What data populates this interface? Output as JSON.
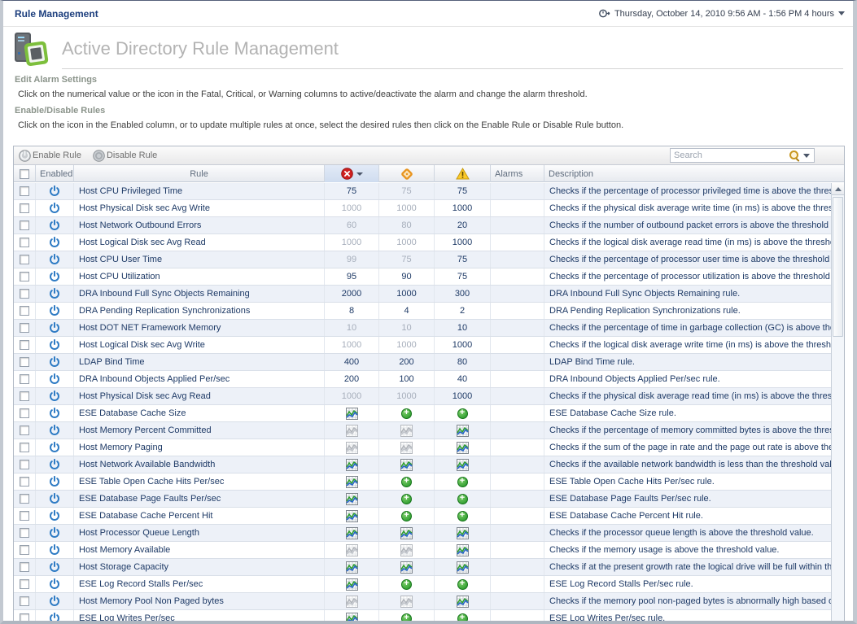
{
  "topbar": {
    "title": "Rule Management",
    "time_range": "Thursday, October 14, 2010 9:56 AM - 1:56 PM 4 hours"
  },
  "header": {
    "title": "Active Directory Rule Management"
  },
  "instructions": {
    "section1_title": "Edit Alarm Settings",
    "section1_text": "Click on the numerical value or the icon in the Fatal, Critical, or Warning columns to active/deactivate the alarm and change the alarm threshold.",
    "section2_title": "Enable/Disable Rules",
    "section2_text": "Click on the icon in the Enabled column, or to update multiple rules at once, select the desired rules then click on the Enable Rule or Disable Rule button."
  },
  "toolbar": {
    "enable_label": "Enable Rule",
    "disable_label": "Disable Rule",
    "search_placeholder": "Search"
  },
  "colors": {
    "enabled_blue": "#2e7bc4",
    "fatal_red": "#cf2020",
    "critical_orange": "#e8941e",
    "warning_yellow": "#fbc928",
    "plus_green": "#1d9123",
    "chart_green": "#2f9e2f",
    "chart_blue": "#2766c8"
  },
  "table": {
    "columns": {
      "enabled": "Enabled",
      "rule": "Rule",
      "alarms": "Alarms",
      "description": "Description"
    },
    "column_icons": {
      "fatal": "fatal-circle-x-icon",
      "critical": "critical-diamond-icon",
      "warning": "warning-triangle-icon"
    },
    "rows": [
      {
        "rule": "Host CPU Privileged Time",
        "fatal": {
          "type": "value",
          "value": "75",
          "active": true
        },
        "critical": {
          "type": "value",
          "value": "75",
          "active": false
        },
        "warning": {
          "type": "value",
          "value": "75",
          "active": true
        },
        "alarms": "",
        "description": "Checks if the percentage of processor privileged time is above the thresh"
      },
      {
        "rule": "Host Physical Disk sec Avg Write",
        "fatal": {
          "type": "value",
          "value": "1000",
          "active": false
        },
        "critical": {
          "type": "value",
          "value": "1000",
          "active": false
        },
        "warning": {
          "type": "value",
          "value": "1000",
          "active": true
        },
        "alarms": "",
        "description": "Checks if the physical disk average write time (in ms) is above the thresho"
      },
      {
        "rule": "Host Network Outbound Errors",
        "fatal": {
          "type": "value",
          "value": "60",
          "active": false
        },
        "critical": {
          "type": "value",
          "value": "80",
          "active": false
        },
        "warning": {
          "type": "value",
          "value": "20",
          "active": true
        },
        "alarms": "",
        "description": "Checks if the number of outbound packet errors is above the threshold va"
      },
      {
        "rule": "Host Logical Disk sec Avg Read",
        "fatal": {
          "type": "value",
          "value": "1000",
          "active": false
        },
        "critical": {
          "type": "value",
          "value": "1000",
          "active": false
        },
        "warning": {
          "type": "value",
          "value": "1000",
          "active": true
        },
        "alarms": "",
        "description": "Checks if the logical disk average read time (in ms) is above the threshold"
      },
      {
        "rule": "Host CPU User Time",
        "fatal": {
          "type": "value",
          "value": "99",
          "active": false
        },
        "critical": {
          "type": "value",
          "value": "75",
          "active": false
        },
        "warning": {
          "type": "value",
          "value": "75",
          "active": true
        },
        "alarms": "",
        "description": "Checks if the percentage of processor user time is above the threshold va"
      },
      {
        "rule": "Host CPU Utilization",
        "fatal": {
          "type": "value",
          "value": "95",
          "active": true
        },
        "critical": {
          "type": "value",
          "value": "90",
          "active": true
        },
        "warning": {
          "type": "value",
          "value": "75",
          "active": true
        },
        "alarms": "",
        "description": "Checks if the percentage of processor utilization is above the threshold v"
      },
      {
        "rule": "DRA Inbound Full Sync Objects Remaining",
        "fatal": {
          "type": "value",
          "value": "2000",
          "active": true
        },
        "critical": {
          "type": "value",
          "value": "1000",
          "active": true
        },
        "warning": {
          "type": "value",
          "value": "300",
          "active": true
        },
        "alarms": "",
        "description": "DRA Inbound Full Sync Objects Remaining rule."
      },
      {
        "rule": "DRA Pending Replication Synchronizations",
        "fatal": {
          "type": "value",
          "value": "8",
          "active": true
        },
        "critical": {
          "type": "value",
          "value": "4",
          "active": true
        },
        "warning": {
          "type": "value",
          "value": "2",
          "active": true
        },
        "alarms": "",
        "description": "DRA Pending Replication Synchronizations rule."
      },
      {
        "rule": "Host DOT NET Framework Memory",
        "fatal": {
          "type": "value",
          "value": "10",
          "active": false
        },
        "critical": {
          "type": "value",
          "value": "10",
          "active": false
        },
        "warning": {
          "type": "value",
          "value": "10",
          "active": true
        },
        "alarms": "",
        "description": "Checks if the percentage of time in garbage collection (GC) is above the t"
      },
      {
        "rule": "Host Logical Disk sec Avg Write",
        "fatal": {
          "type": "value",
          "value": "1000",
          "active": false
        },
        "critical": {
          "type": "value",
          "value": "1000",
          "active": false
        },
        "warning": {
          "type": "value",
          "value": "1000",
          "active": true
        },
        "alarms": "",
        "description": "Checks if the logical disk average write time (in ms) is above the threshol"
      },
      {
        "rule": "LDAP Bind Time",
        "fatal": {
          "type": "value",
          "value": "400",
          "active": true
        },
        "critical": {
          "type": "value",
          "value": "200",
          "active": true
        },
        "warning": {
          "type": "value",
          "value": "80",
          "active": true
        },
        "alarms": "",
        "description": "LDAP Bind Time rule."
      },
      {
        "rule": "DRA Inbound Objects Applied Per/sec",
        "fatal": {
          "type": "value",
          "value": "200",
          "active": true
        },
        "critical": {
          "type": "value",
          "value": "100",
          "active": true
        },
        "warning": {
          "type": "value",
          "value": "40",
          "active": true
        },
        "alarms": "",
        "description": "DRA Inbound Objects Applied Per/sec rule."
      },
      {
        "rule": "Host Physical Disk sec Avg Read",
        "fatal": {
          "type": "value",
          "value": "1000",
          "active": false
        },
        "critical": {
          "type": "value",
          "value": "1000",
          "active": false
        },
        "warning": {
          "type": "value",
          "value": "1000",
          "active": true
        },
        "alarms": "",
        "description": "Checks if the physical disk average read time (in ms) is above the thresho"
      },
      {
        "rule": "ESE Database Cache Size",
        "fatal": {
          "type": "chart",
          "active": true
        },
        "critical": {
          "type": "add",
          "active": true
        },
        "warning": {
          "type": "add",
          "active": true
        },
        "alarms": "",
        "description": "ESE Database Cache Size rule."
      },
      {
        "rule": "Host Memory Percent Committed",
        "fatal": {
          "type": "chart",
          "active": false
        },
        "critical": {
          "type": "chart",
          "active": false
        },
        "warning": {
          "type": "chart",
          "active": true
        },
        "alarms": "",
        "description": "Checks if the percentage of memory committed bytes is above the thresh"
      },
      {
        "rule": "Host Memory Paging",
        "fatal": {
          "type": "chart",
          "active": false
        },
        "critical": {
          "type": "chart",
          "active": false
        },
        "warning": {
          "type": "chart",
          "active": true
        },
        "alarms": "",
        "description": "Checks if the sum of the page in rate and the page out rate is above the"
      },
      {
        "rule": "Host Network Available Bandwidth",
        "fatal": {
          "type": "chart",
          "active": true
        },
        "critical": {
          "type": "chart",
          "active": true
        },
        "warning": {
          "type": "chart",
          "active": true
        },
        "alarms": "",
        "description": "Checks if the available network bandwidth is less than the threshold value"
      },
      {
        "rule": "ESE Table Open Cache Hits Per/sec",
        "fatal": {
          "type": "chart",
          "active": true
        },
        "critical": {
          "type": "add",
          "active": true
        },
        "warning": {
          "type": "add",
          "active": true
        },
        "alarms": "",
        "description": "ESE Table Open Cache Hits Per/sec rule."
      },
      {
        "rule": "ESE Database Page Faults Per/sec",
        "fatal": {
          "type": "chart",
          "active": true
        },
        "critical": {
          "type": "add",
          "active": true
        },
        "warning": {
          "type": "add",
          "active": true
        },
        "alarms": "",
        "description": "ESE Database Page Faults Per/sec rule."
      },
      {
        "rule": "ESE Database Cache Percent Hit",
        "fatal": {
          "type": "chart",
          "active": true
        },
        "critical": {
          "type": "add",
          "active": true
        },
        "warning": {
          "type": "add",
          "active": true
        },
        "alarms": "",
        "description": "ESE Database Cache Percent Hit rule."
      },
      {
        "rule": "Host Processor Queue Length",
        "fatal": {
          "type": "chart",
          "active": true
        },
        "critical": {
          "type": "chart",
          "active": true
        },
        "warning": {
          "type": "chart",
          "active": true
        },
        "alarms": "",
        "description": "Checks if the processor queue length is above the threshold value."
      },
      {
        "rule": "Host Memory Available",
        "fatal": {
          "type": "chart",
          "active": false
        },
        "critical": {
          "type": "chart",
          "active": false
        },
        "warning": {
          "type": "chart",
          "active": true
        },
        "alarms": "",
        "description": "Checks if the memory usage is above the threshold value."
      },
      {
        "rule": "Host Storage Capacity",
        "fatal": {
          "type": "chart",
          "active": true
        },
        "critical": {
          "type": "chart",
          "active": true
        },
        "warning": {
          "type": "chart",
          "active": true
        },
        "alarms": "",
        "description": "Checks if at the present growth rate the logical drive will be full within the"
      },
      {
        "rule": "ESE Log Record Stalls Per/sec",
        "fatal": {
          "type": "chart",
          "active": true
        },
        "critical": {
          "type": "add",
          "active": true
        },
        "warning": {
          "type": "add",
          "active": true
        },
        "alarms": "",
        "description": "ESE Log Record Stalls Per/sec rule."
      },
      {
        "rule": "Host Memory Pool Non Paged bytes",
        "fatal": {
          "type": "chart",
          "active": false
        },
        "critical": {
          "type": "chart",
          "active": false
        },
        "warning": {
          "type": "chart",
          "active": true
        },
        "alarms": "",
        "description": "Checks if the memory pool non-paged bytes is abnormally high based on"
      },
      {
        "rule": "ESE Log Writes Per/sec",
        "fatal": {
          "type": "chart",
          "active": true
        },
        "critical": {
          "type": "add",
          "active": true
        },
        "warning": {
          "type": "add",
          "active": true
        },
        "alarms": "",
        "description": "ESE Log Writes Per/sec rule."
      }
    ]
  }
}
